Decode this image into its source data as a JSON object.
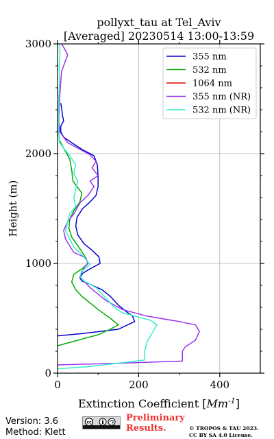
{
  "chart_data": {
    "type": "line",
    "title": "pollyxt_tau at Tel_Aviv",
    "subtitle": "[Averaged] 20230514 13:00-13:59",
    "xlabel_prefix": "Extinction Coefficient [",
    "xlabel_unit": "Mm",
    "xlabel_exp": "-1",
    "xlabel_suffix": "]",
    "ylabel": "Height (m)",
    "xlim": [
      0,
      500
    ],
    "ylim": [
      0,
      3000
    ],
    "x_ticks": [
      "0",
      "200",
      "400"
    ],
    "y_ticks": [
      "0",
      "1000",
      "2000",
      "3000"
    ],
    "grid": true,
    "legend_position": "top-right",
    "series": [
      {
        "name": "355 nm",
        "color": "#0000cc",
        "points": [
          [
            0,
            340
          ],
          [
            60,
            360
          ],
          [
            150,
            400
          ],
          [
            190,
            470
          ],
          [
            185,
            520
          ],
          [
            170,
            560
          ],
          [
            150,
            620
          ],
          [
            130,
            700
          ],
          [
            110,
            760
          ],
          [
            80,
            810
          ],
          [
            60,
            840
          ],
          [
            55,
            870
          ],
          [
            62,
            910
          ],
          [
            80,
            950
          ],
          [
            105,
            1000
          ],
          [
            102,
            1060
          ],
          [
            85,
            1120
          ],
          [
            65,
            1180
          ],
          [
            50,
            1260
          ],
          [
            45,
            1340
          ],
          [
            48,
            1420
          ],
          [
            62,
            1500
          ],
          [
            80,
            1560
          ],
          [
            95,
            1620
          ],
          [
            100,
            1700
          ],
          [
            100,
            1800
          ],
          [
            98,
            1900
          ],
          [
            90,
            1980
          ],
          [
            60,
            2040
          ],
          [
            35,
            2100
          ],
          [
            15,
            2150
          ],
          [
            8,
            2200
          ],
          [
            8,
            2250
          ],
          [
            15,
            2300
          ],
          [
            12,
            2350
          ],
          [
            10,
            2420
          ],
          [
            8,
            2460
          ]
        ]
      },
      {
        "name": "532 nm",
        "color": "#00aa00",
        "points": [
          [
            0,
            250
          ],
          [
            40,
            290
          ],
          [
            100,
            350
          ],
          [
            130,
            400
          ],
          [
            150,
            440
          ],
          [
            130,
            500
          ],
          [
            100,
            580
          ],
          [
            80,
            640
          ],
          [
            60,
            700
          ],
          [
            45,
            760
          ],
          [
            35,
            830
          ],
          [
            40,
            900
          ],
          [
            60,
            950
          ],
          [
            75,
            1000
          ],
          [
            65,
            1080
          ],
          [
            50,
            1160
          ],
          [
            35,
            1240
          ],
          [
            28,
            1320
          ],
          [
            30,
            1400
          ],
          [
            40,
            1480
          ],
          [
            55,
            1560
          ],
          [
            60,
            1640
          ],
          [
            38,
            1750
          ],
          [
            35,
            1850
          ],
          [
            30,
            1950
          ],
          [
            15,
            2050
          ],
          [
            5,
            2120
          ],
          [
            2,
            2200
          ]
        ]
      },
      {
        "name": "1064 nm",
        "color": "#dd0000",
        "points": []
      },
      {
        "name": "355 nm (NR)",
        "color": "#9933ee",
        "points": [
          [
            0,
            75
          ],
          [
            150,
            90
          ],
          [
            308,
            110
          ],
          [
            308,
            200
          ],
          [
            315,
            240
          ],
          [
            340,
            300
          ],
          [
            350,
            380
          ],
          [
            340,
            440
          ],
          [
            300,
            470
          ],
          [
            220,
            520
          ],
          [
            160,
            580
          ],
          [
            120,
            660
          ],
          [
            80,
            780
          ],
          [
            55,
            880
          ],
          [
            65,
            960
          ],
          [
            75,
            1000
          ],
          [
            70,
            1050
          ],
          [
            40,
            1100
          ],
          [
            30,
            1160
          ],
          [
            20,
            1220
          ],
          [
            15,
            1300
          ],
          [
            25,
            1380
          ],
          [
            40,
            1450
          ],
          [
            55,
            1550
          ],
          [
            75,
            1620
          ],
          [
            90,
            1700
          ],
          [
            80,
            1750
          ],
          [
            100,
            1800
          ],
          [
            85,
            1870
          ],
          [
            95,
            1930
          ],
          [
            80,
            1990
          ],
          [
            60,
            2030
          ],
          [
            40,
            2070
          ],
          [
            25,
            2100
          ],
          [
            15,
            2150
          ],
          [
            5,
            2200
          ],
          [
            3,
            2300
          ],
          [
            5,
            2500
          ],
          [
            8,
            2650
          ],
          [
            10,
            2750
          ],
          [
            15,
            2800
          ],
          [
            20,
            2850
          ],
          [
            25,
            2900
          ],
          [
            18,
            2950
          ],
          [
            10,
            3000
          ]
        ]
      },
      {
        "name": "532 nm (NR)",
        "color": "#33eecc",
        "points": [
          [
            0,
            40
          ],
          [
            80,
            60
          ],
          [
            170,
            100
          ],
          [
            215,
            120
          ],
          [
            215,
            200
          ],
          [
            220,
            280
          ],
          [
            245,
            440
          ],
          [
            230,
            480
          ],
          [
            200,
            510
          ],
          [
            160,
            550
          ],
          [
            140,
            600
          ],
          [
            120,
            680
          ],
          [
            95,
            780
          ],
          [
            65,
            840
          ],
          [
            55,
            880
          ],
          [
            60,
            930
          ],
          [
            80,
            990
          ],
          [
            60,
            1080
          ],
          [
            40,
            1150
          ],
          [
            30,
            1220
          ],
          [
            20,
            1300
          ],
          [
            25,
            1380
          ],
          [
            30,
            1450
          ],
          [
            45,
            1520
          ],
          [
            40,
            1600
          ],
          [
            45,
            1680
          ],
          [
            50,
            1750
          ],
          [
            40,
            1820
          ],
          [
            45,
            1900
          ],
          [
            30,
            1980
          ],
          [
            15,
            2050
          ],
          [
            5,
            2100
          ],
          [
            2,
            2200
          ],
          [
            3,
            2500
          ],
          [
            5,
            2650
          ],
          [
            4,
            2800
          ],
          [
            6,
            2900
          ],
          [
            5,
            3000
          ]
        ]
      }
    ]
  },
  "footer": {
    "version": "Version: 3.6",
    "method": "Method: Klett",
    "preliminary_line1": "Preliminary",
    "preliminary_line2": "Results.",
    "copyright_line1": "© TROPOS & TAU 2023.",
    "copyright_line2": "CC BY SA 4.0 License.",
    "license_badge_text": "cc by sa"
  }
}
